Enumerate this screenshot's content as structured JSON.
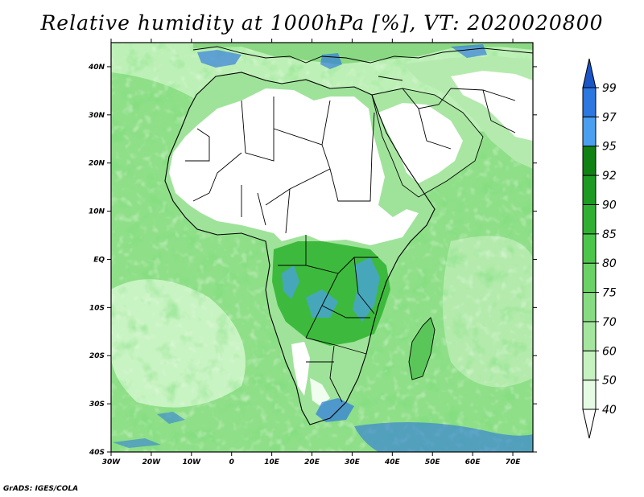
{
  "title": "Relative humidity at 1000hPa [%], VT: 2020020800",
  "credit": "GrADS: IGES/COLA",
  "map": {
    "lon_range": [
      -30,
      75
    ],
    "lat_range": [
      -40,
      45
    ],
    "lat_ticks": [
      {
        "value": 40,
        "label": "40N"
      },
      {
        "value": 30,
        "label": "30N"
      },
      {
        "value": 20,
        "label": "20N"
      },
      {
        "value": 10,
        "label": "10N"
      },
      {
        "value": 0,
        "label": "EQ"
      },
      {
        "value": -10,
        "label": "10S"
      },
      {
        "value": -20,
        "label": "20S"
      },
      {
        "value": -30,
        "label": "30S"
      },
      {
        "value": -40,
        "label": "40S"
      }
    ],
    "lon_ticks": [
      {
        "value": -30,
        "label": "30W"
      },
      {
        "value": -20,
        "label": "20W"
      },
      {
        "value": -10,
        "label": "10W"
      },
      {
        "value": 0,
        "label": "0"
      },
      {
        "value": 10,
        "label": "10E"
      },
      {
        "value": 20,
        "label": "20E"
      },
      {
        "value": 30,
        "label": "30E"
      },
      {
        "value": 40,
        "label": "40E"
      },
      {
        "value": 50,
        "label": "50E"
      },
      {
        "value": 60,
        "label": "60E"
      },
      {
        "value": 70,
        "label": "70E"
      }
    ]
  },
  "colorbar": {
    "levels": [
      "40",
      "50",
      "60",
      "70",
      "75",
      "80",
      "85",
      "90",
      "92",
      "95",
      "97",
      "99"
    ],
    "colors": [
      "#ffffff",
      "#e6fbe3",
      "#c6f2c0",
      "#a4e69e",
      "#87dc82",
      "#6bd266",
      "#4cc64a",
      "#2fb032",
      "#1c9a22",
      "#108214",
      "#4a9ff0",
      "#2c77e0",
      "#1a56c8"
    ]
  }
}
